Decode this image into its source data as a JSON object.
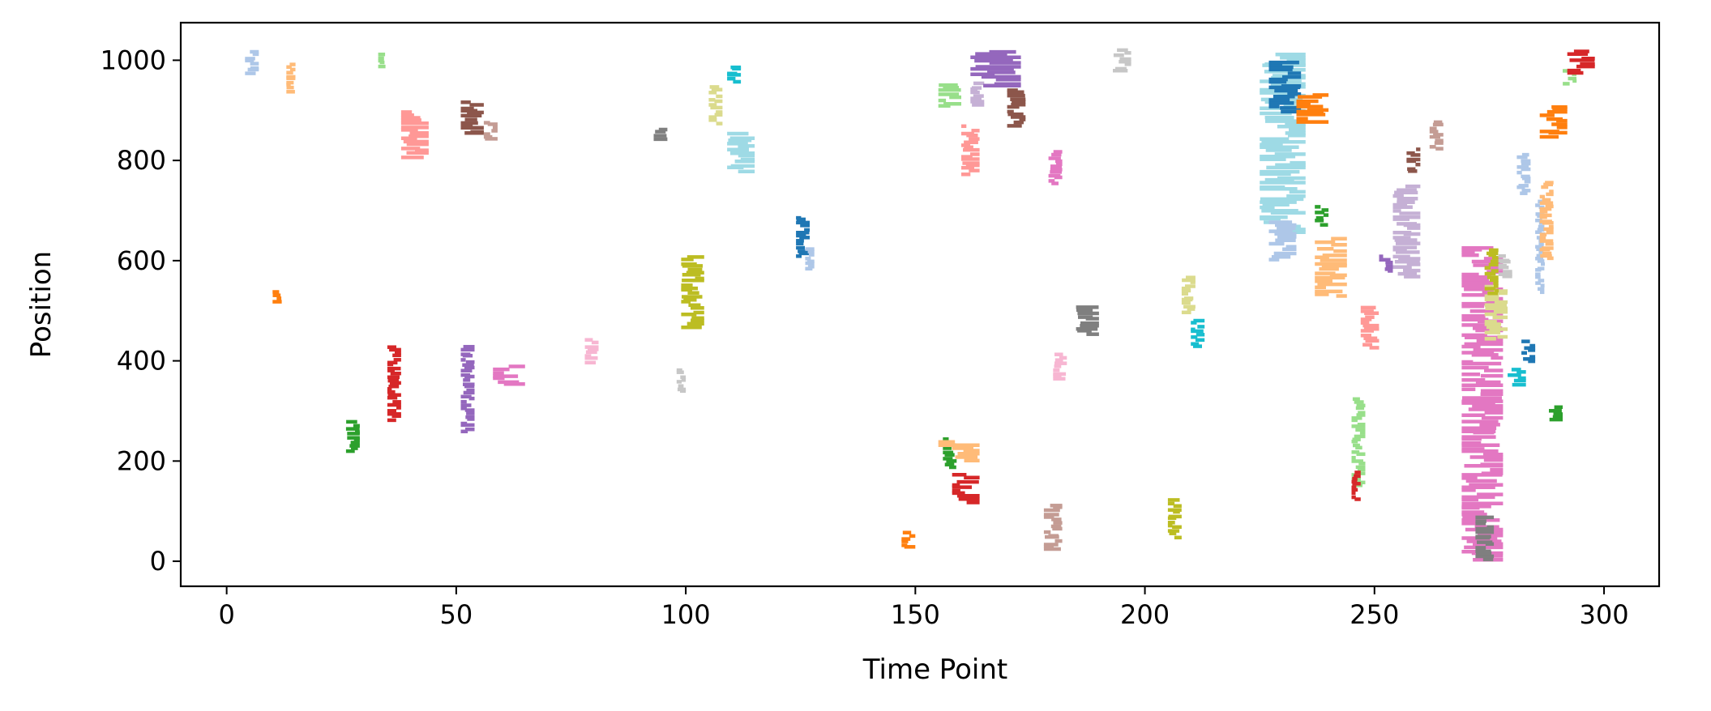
{
  "chart_data": {
    "type": "scatter",
    "title": "",
    "xlabel": "Time Point",
    "ylabel": "Position",
    "xlim": [
      -10,
      312
    ],
    "ylim": [
      -50,
      1075
    ],
    "xticks": [
      0,
      50,
      100,
      150,
      200,
      250,
      300
    ],
    "yticks": [
      0,
      200,
      400,
      600,
      800,
      1000
    ],
    "grid": false,
    "legend": "none",
    "marker": "short horizontal dash",
    "palette": [
      "#1f77b4",
      "#aec7e8",
      "#ff7f0e",
      "#ffbb78",
      "#2ca02c",
      "#98df8a",
      "#d62728",
      "#ff9896",
      "#9467bd",
      "#c5b0d5",
      "#8c564b",
      "#c49c94",
      "#e377c2",
      "#f7b6d2",
      "#7f7f7f",
      "#c7c7c7",
      "#bcbd22",
      "#dbdb8d",
      "#17becf",
      "#9edae5"
    ],
    "clusters": [
      {
        "color": "#aec7e8",
        "x": [
          4,
          7
        ],
        "y": [
          970,
          1020
        ]
      },
      {
        "color": "#ffbb78",
        "x": [
          13,
          15
        ],
        "y": [
          935,
          995
        ]
      },
      {
        "color": "#98df8a",
        "x": [
          33,
          35
        ],
        "y": [
          985,
          1015
        ]
      },
      {
        "color": "#ff7f0e",
        "x": [
          10,
          12
        ],
        "y": [
          515,
          540
        ]
      },
      {
        "color": "#2ca02c",
        "x": [
          26,
          29
        ],
        "y": [
          215,
          280
        ]
      },
      {
        "color": "#ff9896",
        "x": [
          38,
          44
        ],
        "y": [
          805,
          900
        ]
      },
      {
        "color": "#d62728",
        "x": [
          35,
          38
        ],
        "y": [
          280,
          430
        ]
      },
      {
        "color": "#9467bd",
        "x": [
          51,
          54
        ],
        "y": [
          255,
          430
        ]
      },
      {
        "color": "#8c564b",
        "x": [
          51,
          56
        ],
        "y": [
          850,
          920
        ]
      },
      {
        "color": "#c49c94",
        "x": [
          56,
          59
        ],
        "y": [
          840,
          880
        ]
      },
      {
        "color": "#e377c2",
        "x": [
          58,
          65
        ],
        "y": [
          350,
          390
        ]
      },
      {
        "color": "#f7b6d2",
        "x": [
          78,
          81
        ],
        "y": [
          395,
          445
        ]
      },
      {
        "color": "#7f7f7f",
        "x": [
          93,
          96
        ],
        "y": [
          840,
          865
        ]
      },
      {
        "color": "#c7c7c7",
        "x": [
          98,
          100
        ],
        "y": [
          335,
          385
        ]
      },
      {
        "color": "#bcbd22",
        "x": [
          99,
          104
        ],
        "y": [
          465,
          610
        ]
      },
      {
        "color": "#dbdb8d",
        "x": [
          105,
          108
        ],
        "y": [
          870,
          950
        ]
      },
      {
        "color": "#17becf",
        "x": [
          109,
          112
        ],
        "y": [
          955,
          990
        ]
      },
      {
        "color": "#9edae5",
        "x": [
          109,
          115
        ],
        "y": [
          775,
          855
        ]
      },
      {
        "color": "#1f77b4",
        "x": [
          124,
          127
        ],
        "y": [
          605,
          690
        ]
      },
      {
        "color": "#aec7e8",
        "x": [
          126,
          128
        ],
        "y": [
          580,
          625
        ]
      },
      {
        "color": "#ff7f0e",
        "x": [
          147,
          150
        ],
        "y": [
          25,
          60
        ]
      },
      {
        "color": "#2ca02c",
        "x": [
          156,
          159
        ],
        "y": [
          185,
          245
        ]
      },
      {
        "color": "#ffbb78",
        "x": [
          155,
          164
        ],
        "y": [
          200,
          240
        ]
      },
      {
        "color": "#d62728",
        "x": [
          158,
          164
        ],
        "y": [
          115,
          175
        ]
      },
      {
        "color": "#98df8a",
        "x": [
          155,
          160
        ],
        "y": [
          905,
          955
        ]
      },
      {
        "color": "#c5b0d5",
        "x": [
          162,
          165
        ],
        "y": [
          910,
          955
        ]
      },
      {
        "color": "#ff9896",
        "x": [
          160,
          164
        ],
        "y": [
          770,
          870
        ]
      },
      {
        "color": "#9467bd",
        "x": [
          162,
          173
        ],
        "y": [
          945,
          1020
        ]
      },
      {
        "color": "#8c564b",
        "x": [
          170,
          174
        ],
        "y": [
          865,
          945
        ]
      },
      {
        "color": "#e377c2",
        "x": [
          179,
          182
        ],
        "y": [
          750,
          820
        ]
      },
      {
        "color": "#f7b6d2",
        "x": [
          180,
          183
        ],
        "y": [
          360,
          415
        ]
      },
      {
        "color": "#c49c94",
        "x": [
          178,
          182
        ],
        "y": [
          20,
          115
        ]
      },
      {
        "color": "#7f7f7f",
        "x": [
          185,
          190
        ],
        "y": [
          450,
          510
        ]
      },
      {
        "color": "#c7c7c7",
        "x": [
          193,
          197
        ],
        "y": [
          975,
          1025
        ]
      },
      {
        "color": "#bcbd22",
        "x": [
          205,
          208
        ],
        "y": [
          45,
          125
        ]
      },
      {
        "color": "#dbdb8d",
        "x": [
          208,
          211
        ],
        "y": [
          495,
          570
        ]
      },
      {
        "color": "#17becf",
        "x": [
          210,
          213
        ],
        "y": [
          425,
          485
        ]
      },
      {
        "color": "#9edae5",
        "x": [
          225,
          235
        ],
        "y": [
          655,
          1015
        ]
      },
      {
        "color": "#aec7e8",
        "x": [
          227,
          233
        ],
        "y": [
          600,
          680
        ]
      },
      {
        "color": "#1f77b4",
        "x": [
          227,
          234
        ],
        "y": [
          895,
          1000
        ]
      },
      {
        "color": "#ff7f0e",
        "x": [
          233,
          240
        ],
        "y": [
          875,
          935
        ]
      },
      {
        "color": "#2ca02c",
        "x": [
          237,
          240
        ],
        "y": [
          670,
          710
        ]
      },
      {
        "color": "#ffbb78",
        "x": [
          237,
          244
        ],
        "y": [
          525,
          645
        ]
      },
      {
        "color": "#98df8a",
        "x": [
          245,
          248
        ],
        "y": [
          150,
          325
        ]
      },
      {
        "color": "#d62728",
        "x": [
          245,
          247
        ],
        "y": [
          120,
          180
        ]
      },
      {
        "color": "#ff9896",
        "x": [
          247,
          251
        ],
        "y": [
          425,
          510
        ]
      },
      {
        "color": "#9467bd",
        "x": [
          251,
          254
        ],
        "y": [
          575,
          610
        ]
      },
      {
        "color": "#c5b0d5",
        "x": [
          254,
          260
        ],
        "y": [
          565,
          750
        ]
      },
      {
        "color": "#8c564b",
        "x": [
          257,
          260
        ],
        "y": [
          775,
          825
        ]
      },
      {
        "color": "#c49c94",
        "x": [
          262,
          265
        ],
        "y": [
          820,
          880
        ]
      },
      {
        "color": "#e377c2",
        "x": [
          269,
          278
        ],
        "y": [
          0,
          630
        ]
      },
      {
        "color": "#dbdb8d",
        "x": [
          274,
          279
        ],
        "y": [
          440,
          550
        ]
      },
      {
        "color": "#bcbd22",
        "x": [
          274,
          277
        ],
        "y": [
          530,
          625
        ]
      },
      {
        "color": "#c7c7c7",
        "x": [
          277,
          280
        ],
        "y": [
          565,
          610
        ]
      },
      {
        "color": "#7f7f7f",
        "x": [
          272,
          276
        ],
        "y": [
          0,
          90
        ]
      },
      {
        "color": "#17becf",
        "x": [
          279,
          283
        ],
        "y": [
          350,
          385
        ]
      },
      {
        "color": "#1f77b4",
        "x": [
          282,
          285
        ],
        "y": [
          395,
          440
        ]
      },
      {
        "color": "#aec7e8",
        "x": [
          285,
          287
        ],
        "y": [
          535,
          720
        ]
      },
      {
        "color": "#aec7e8",
        "x": [
          281,
          284
        ],
        "y": [
          730,
          815
        ]
      },
      {
        "color": "#ffbb78",
        "x": [
          286,
          289
        ],
        "y": [
          600,
          760
        ]
      },
      {
        "color": "#ff7f0e",
        "x": [
          286,
          292
        ],
        "y": [
          845,
          910
        ]
      },
      {
        "color": "#98df8a",
        "x": [
          291,
          294
        ],
        "y": [
          950,
          980
        ]
      },
      {
        "color": "#d62728",
        "x": [
          292,
          298
        ],
        "y": [
          970,
          1020
        ]
      },
      {
        "color": "#2ca02c",
        "x": [
          288,
          291
        ],
        "y": [
          280,
          310
        ]
      }
    ]
  }
}
